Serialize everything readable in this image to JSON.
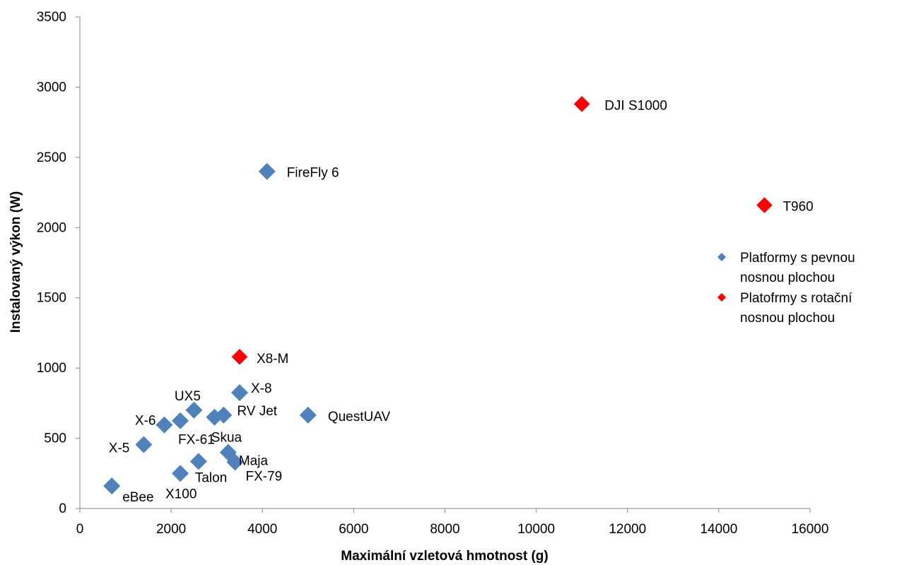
{
  "chart_data": {
    "type": "scatter",
    "xlabel": "Maximální vzletová hmotnost (g)",
    "ylabel": "Instalovaný výkon (W)",
    "xlim": [
      0,
      16000
    ],
    "ylim": [
      0,
      3500
    ],
    "x_ticks": [
      0,
      2000,
      4000,
      6000,
      8000,
      10000,
      12000,
      14000,
      16000
    ],
    "y_ticks": [
      0,
      500,
      1000,
      1500,
      2000,
      2500,
      3000,
      3500
    ],
    "grid": false,
    "legend_position": "right",
    "series": [
      {
        "name": "Platformy s pevnou nosnou plochou",
        "legend_lines": [
          "Platformy s pevnou",
          "nosnou plochou"
        ],
        "color": "#4f81bd",
        "marker": "diamond",
        "points": [
          {
            "label": "FireFly 6",
            "x": 4100,
            "y": 2400
          },
          {
            "label": "X-8",
            "x": 3500,
            "y": 825
          },
          {
            "label": "UX5",
            "x": 2500,
            "y": 700
          },
          {
            "label": "RV Jet",
            "x": 3150,
            "y": 665
          },
          {
            "label": "QuestUAV",
            "x": 5000,
            "y": 665
          },
          {
            "label": "X-6",
            "x": 1850,
            "y": 595
          },
          {
            "label": "Skua",
            "x": 2950,
            "y": 650
          },
          {
            "label": "FX-61",
            "x": 2200,
            "y": 625
          },
          {
            "label": "X-5",
            "x": 1400,
            "y": 455
          },
          {
            "label": "Maja",
            "x": 3250,
            "y": 400
          },
          {
            "label": "FX-79",
            "x": 3400,
            "y": 330
          },
          {
            "label": "Talon",
            "x": 2600,
            "y": 335
          },
          {
            "label": "X100",
            "x": 2200,
            "y": 250
          },
          {
            "label": "eBee",
            "x": 700,
            "y": 160
          }
        ]
      },
      {
        "name": "Platofrmy s rotační nosnou plochou",
        "legend_lines": [
          "Platofrmy s rotační",
          "nosnou plochou"
        ],
        "color": "#ff0000",
        "marker": "diamond",
        "points": [
          {
            "label": "DJI S1000",
            "x": 11000,
            "y": 2880
          },
          {
            "label": "T960",
            "x": 15000,
            "y": 2160
          },
          {
            "label": "X8-M",
            "x": 3500,
            "y": 1080
          }
        ]
      }
    ]
  }
}
